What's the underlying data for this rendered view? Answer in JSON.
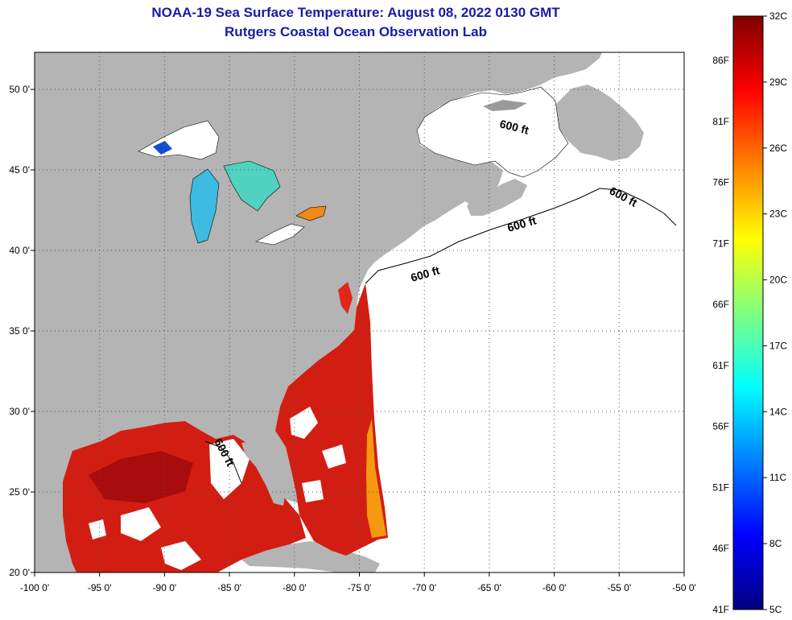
{
  "title": {
    "line1": "NOAA-19 Sea Surface Temperature:  August 08, 2022 0130 GMT",
    "line2": "Rutgers Coastal Ocean Observation Lab"
  },
  "map": {
    "lon_range": [
      -100,
      -50
    ],
    "lat_range": [
      20,
      52.3
    ],
    "lon_ticks": [
      -100,
      -95,
      -90,
      -85,
      -80,
      -75,
      -70,
      -65,
      -60,
      -55,
      -50
    ],
    "lat_ticks": [
      20,
      25,
      30,
      35,
      40,
      45,
      50
    ],
    "lon_tick_labels": [
      "-100 0'",
      "-95 0'",
      "-90 0'",
      "-85 0'",
      "-80 0'",
      "-75 0'",
      "-70 0'",
      "-65 0'",
      "-60 0'",
      "-55 0'",
      "-50 0'"
    ],
    "lat_tick_labels": [
      "20 0'",
      "25 0'",
      "30 0'",
      "35 0'",
      "40 0'",
      "45 0'",
      "50 0'"
    ],
    "contour_labels": [
      "600 ft",
      "600 ft",
      "600 ft",
      "600 ft",
      "600 ft"
    ],
    "colors": {
      "land": "#b4b4b4",
      "no_data": "#ffffff",
      "warm_water": "#d21e12",
      "hot_water": "#a80c0c",
      "gulf_stream_edge": "#f59a10",
      "cool_lake": "#3dbbe0"
    }
  },
  "colorbar": {
    "celsius_labels": [
      "32C",
      "29C",
      "26C",
      "23C",
      "20C",
      "17C",
      "14C",
      "11C",
      "8C",
      "5C"
    ],
    "fahrenheit_labels": [
      "86F",
      "81F",
      "76F",
      "71F",
      "66F",
      "61F",
      "56F",
      "51F",
      "46F",
      "41F"
    ],
    "colors": [
      "#00007f",
      "#0000ff",
      "#0080ff",
      "#00ffff",
      "#80ff80",
      "#ffff00",
      "#ff8000",
      "#ff0000",
      "#7f0000"
    ]
  }
}
